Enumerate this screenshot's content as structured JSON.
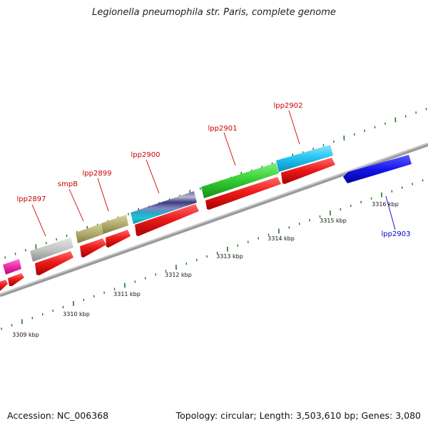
{
  "title": "Legionella pneumophila str. Paris, complete genome",
  "footer": {
    "accession": "Accession: NC_006368",
    "summary": "Topology: circular; Length: 3,503,610 bp; Genes: 3,080"
  },
  "colors": {
    "backbone": "#8c8c8c",
    "tick": "#1f7a1f",
    "cds": "#ee1c1c",
    "label_forward": "#cc0000",
    "label_reverse": "#0000cc"
  },
  "scale": {
    "tick_labels": [
      "3309 kbp",
      "3310 kbp",
      "3311 kbp",
      "3312 kbp",
      "3313 kbp",
      "3314 kbp",
      "3315 kbp",
      "3316 kbp"
    ]
  },
  "genes": [
    {
      "name": "lpp2897",
      "label": "lpp2897",
      "strand": "forward"
    },
    {
      "name": "smpB",
      "label": "smpB",
      "strand": "forward"
    },
    {
      "name": "lpp2899",
      "label": "lpp2899",
      "strand": "forward"
    },
    {
      "name": "lpp2900",
      "label": "lpp2900",
      "strand": "forward"
    },
    {
      "name": "lpp2901",
      "label": "lpp2901",
      "strand": "forward"
    },
    {
      "name": "lpp2902",
      "label": "lpp2902",
      "strand": "forward"
    },
    {
      "name": "lpp2903",
      "label": "lpp2903",
      "strand": "reverse"
    }
  ]
}
